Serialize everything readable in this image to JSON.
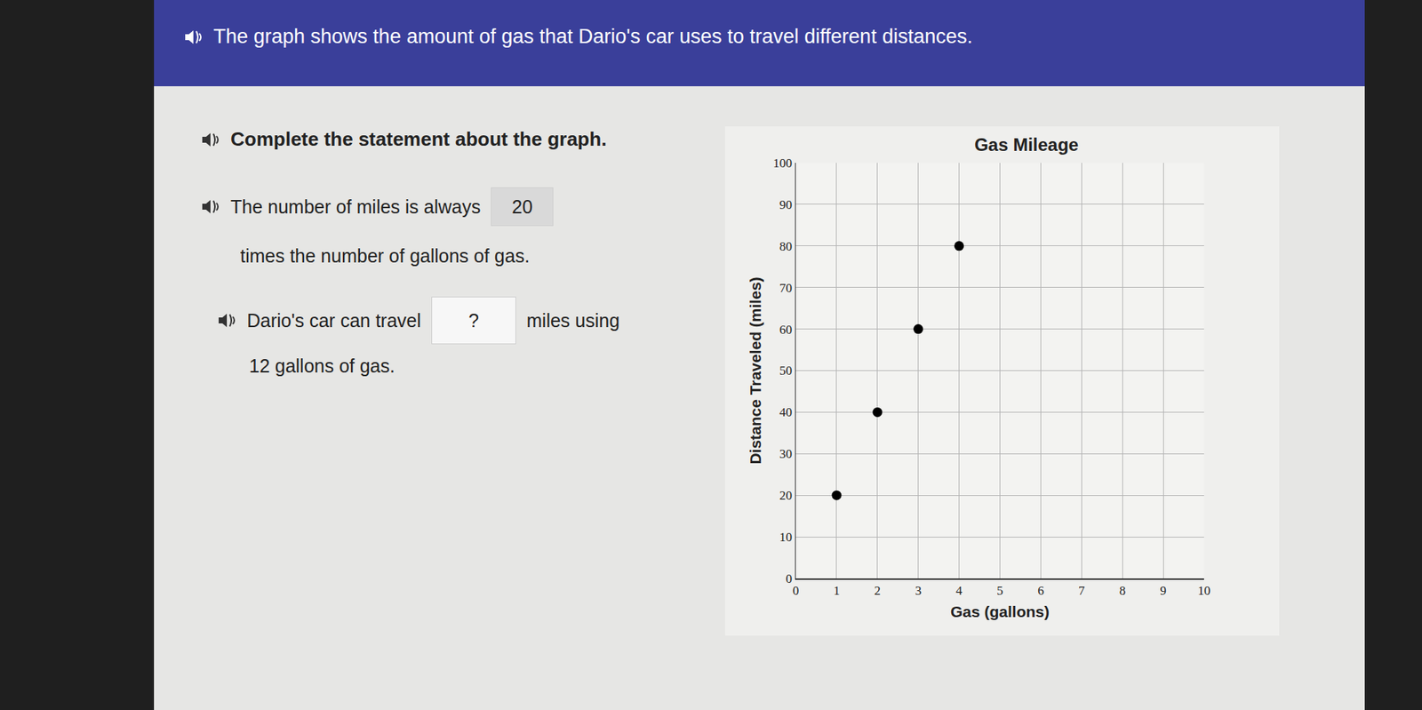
{
  "header": {
    "text": "The graph shows the amount of gas that Dario's car uses to travel different distances."
  },
  "prompt": "Complete the statement about the graph.",
  "statements": [
    {
      "before": "The number of miles is always",
      "answer": "20",
      "after": "times the number of gallons of gas."
    },
    {
      "before": "Dario's car can travel",
      "answer": "?",
      "after": "miles using",
      "continuation": "12 gallons of gas."
    }
  ],
  "chart_data": {
    "type": "scatter",
    "title": "Gas Mileage",
    "x_label": "Gas (gallons)",
    "y_label": "Distance Traveled (miles)",
    "x": [
      1,
      2,
      3,
      4
    ],
    "values": [
      20,
      40,
      60,
      80
    ],
    "color": "#000000",
    "marker": "circle",
    "xlim": [
      0,
      10
    ],
    "xticks": [
      0,
      1,
      2,
      3,
      4,
      5,
      6,
      7,
      8,
      9,
      10
    ],
    "ylim": [
      0,
      100
    ],
    "yticks": [
      0,
      10,
      20,
      30,
      40,
      50,
      60,
      70,
      80,
      90,
      100
    ],
    "grid": true
  }
}
